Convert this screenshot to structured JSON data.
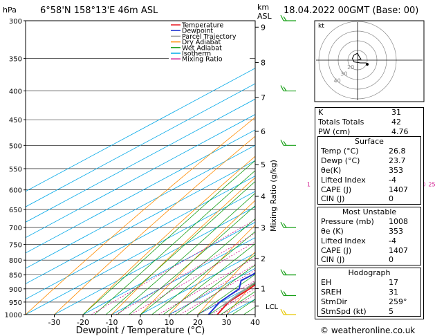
{
  "header": {
    "location": "6°58'N 158°13'E 46m ASL",
    "datetime": "18.04.2022 00GMT (Base: 00)",
    "hpa_unit": "hPa",
    "km_unit": "km",
    "asl_unit": "ASL"
  },
  "footer": {
    "credit": "© weatheronline.co.uk"
  },
  "legend": {
    "items": [
      {
        "label": "Temperature",
        "color": "#e8141e"
      },
      {
        "label": "Dewpoint",
        "color": "#1e32d2"
      },
      {
        "label": "Parcel Trajectory",
        "color": "#9a9a9a"
      },
      {
        "label": "Dry Adiabat",
        "color": "#ff8c00"
      },
      {
        "label": "Wet Adiabat",
        "color": "#18a018"
      },
      {
        "label": "Isotherm",
        "color": "#00a8e8"
      },
      {
        "label": "Mixing Ratio",
        "color": "#d0128c"
      }
    ]
  },
  "chart_data": {
    "type": "line",
    "title": "",
    "xlabel": "Dewpoint / Temperature (°C)",
    "ylabel": "hPa",
    "xlim": [
      -40,
      40
    ],
    "ylim": [
      1000,
      300
    ],
    "y_scale": "log",
    "x_ticks": [
      -30,
      -20,
      -10,
      0,
      10,
      20,
      30,
      40
    ],
    "pressure_ticks": [
      300,
      350,
      400,
      450,
      500,
      550,
      600,
      650,
      700,
      750,
      800,
      850,
      900,
      950,
      1000
    ],
    "km_ticks": [
      {
        "label": "9",
        "p": 308
      },
      {
        "label": "8",
        "p": 356
      },
      {
        "label": "7",
        "p": 411
      },
      {
        "label": "6",
        "p": 472
      },
      {
        "label": "5",
        "p": 541
      },
      {
        "label": "4",
        "p": 616
      },
      {
        "label": "3",
        "p": 701
      },
      {
        "label": "2",
        "p": 795
      },
      {
        "label": "1",
        "p": 899
      }
    ],
    "lcl_label": "LCL",
    "lcl_p": 966,
    "mixing_ratio_axis_label": "Mixing Ratio (g/kg)",
    "mixing_ratio_labels": [
      "1",
      "2",
      "3",
      "6",
      "8",
      "10",
      "15",
      "20",
      "25"
    ],
    "mixing_ratio_values": [
      1,
      2,
      3,
      6,
      8,
      10,
      15,
      20,
      25
    ],
    "series": [
      {
        "name": "Temperature",
        "color": "#e8141e",
        "points": [
          [
            1000,
            26.8
          ],
          [
            950,
            22.6
          ],
          [
            900,
            21.3
          ],
          [
            850,
            18.8
          ],
          [
            800,
            17.3
          ],
          [
            750,
            14.6
          ],
          [
            700,
            11.2
          ],
          [
            650,
            8.6
          ],
          [
            600,
            6.8
          ],
          [
            550,
            3.0
          ],
          [
            500,
            -1.0
          ],
          [
            450,
            -6.0
          ],
          [
            400,
            -12.0
          ],
          [
            350,
            -19.5
          ],
          [
            300,
            -28.5
          ]
        ]
      },
      {
        "name": "Dewpoint",
        "color": "#1e32d2",
        "points": [
          [
            1000,
            23.7
          ],
          [
            950,
            19.5
          ],
          [
            900,
            17.7
          ],
          [
            870,
            13.0
          ],
          [
            850,
            13.2
          ],
          [
            800,
            11.5
          ],
          [
            750,
            9.2
          ],
          [
            700,
            6.0
          ],
          [
            650,
            5.5
          ],
          [
            620,
            3.0
          ],
          [
            605,
            -3.0
          ],
          [
            600,
            -1.0
          ],
          [
            580,
            4.0
          ],
          [
            560,
            4.5
          ],
          [
            550,
            0.0
          ],
          [
            540,
            1.5
          ],
          [
            520,
            -1.0
          ],
          [
            510,
            0.0
          ],
          [
            500,
            -4.0
          ],
          [
            470,
            -5.0
          ],
          [
            450,
            -8.5
          ],
          [
            430,
            -9.5
          ],
          [
            420,
            -13.5
          ],
          [
            410,
            -14.0
          ],
          [
            405,
            -25.0
          ],
          [
            400,
            -16.0
          ],
          [
            395,
            -15.0
          ],
          [
            385,
            -24.0
          ],
          [
            375,
            -32.0
          ],
          [
            350,
            -46.0
          ],
          [
            330,
            -47.0
          ],
          [
            300,
            -42.0
          ]
        ]
      },
      {
        "name": "Parcel Trajectory",
        "color": "#9a9a9a",
        "points": [
          [
            966,
            23.0
          ],
          [
            950,
            22.3
          ],
          [
            900,
            20.0
          ],
          [
            850,
            17.6
          ],
          [
            800,
            15.0
          ],
          [
            750,
            12.2
          ],
          [
            700,
            9.3
          ],
          [
            650,
            6.3
          ],
          [
            600,
            3.5
          ],
          [
            550,
            0.2
          ],
          [
            500,
            -3.5
          ],
          [
            450,
            -7.8
          ],
          [
            400,
            -13.0
          ],
          [
            360,
            -18.0
          ]
        ]
      }
    ]
  },
  "hodograph": {
    "unit_label": "kt",
    "ring_labels": [
      "20",
      "30",
      "40"
    ],
    "points": [
      [
        0,
        0
      ],
      [
        1,
        0.3
      ],
      [
        0.5,
        1.0
      ],
      [
        0,
        2.0
      ],
      [
        -1.0,
        1.5
      ],
      [
        -1.5,
        0.5
      ],
      [
        -1.0,
        -0.5
      ],
      [
        0.8,
        -0.8
      ],
      [
        2.5,
        -0.8
      ]
    ],
    "storm_motion": [
      2.8,
      -1.2
    ]
  },
  "indices": {
    "top": [
      {
        "k": "K",
        "v": "31"
      },
      {
        "k": "Totals Totals",
        "v": "42"
      },
      {
        "k": "PW (cm)",
        "v": "4.76"
      }
    ],
    "surface": {
      "title": "Surface",
      "rows": [
        {
          "k": "Temp (°C)",
          "v": "26.8"
        },
        {
          "k": "Dewp (°C)",
          "v": "23.7"
        },
        {
          "k": "θe(K)",
          "v": "353"
        },
        {
          "k": "Lifted Index",
          "v": "-4"
        },
        {
          "k": "CAPE (J)",
          "v": "1407"
        },
        {
          "k": "CIN (J)",
          "v": "0"
        }
      ]
    },
    "most_unstable": {
      "title": "Most Unstable",
      "rows": [
        {
          "k": "Pressure (mb)",
          "v": "1008"
        },
        {
          "k": "θe (K)",
          "v": "353"
        },
        {
          "k": "Lifted Index",
          "v": "-4"
        },
        {
          "k": "CAPE (J)",
          "v": "1407"
        },
        {
          "k": "CIN (J)",
          "v": "0"
        }
      ]
    },
    "hodograph_box": {
      "title": "Hodograph",
      "rows": [
        {
          "k": "EH",
          "v": "17"
        },
        {
          "k": "SREH",
          "v": "31"
        },
        {
          "k": "StmDir",
          "v": "259°"
        },
        {
          "k": "StmSpd (kt)",
          "v": "5"
        }
      ]
    }
  },
  "wind_barbs": [
    {
      "p": 300,
      "color": "#18a018"
    },
    {
      "p": 400,
      "color": "#18a018"
    },
    {
      "p": 500,
      "color": "#18a018"
    },
    {
      "p": 700,
      "color": "#18a018"
    },
    {
      "p": 850,
      "color": "#18a018"
    },
    {
      "p": 925,
      "color": "#18a018"
    },
    {
      "p": 1000,
      "color": "#e8c800"
    }
  ]
}
